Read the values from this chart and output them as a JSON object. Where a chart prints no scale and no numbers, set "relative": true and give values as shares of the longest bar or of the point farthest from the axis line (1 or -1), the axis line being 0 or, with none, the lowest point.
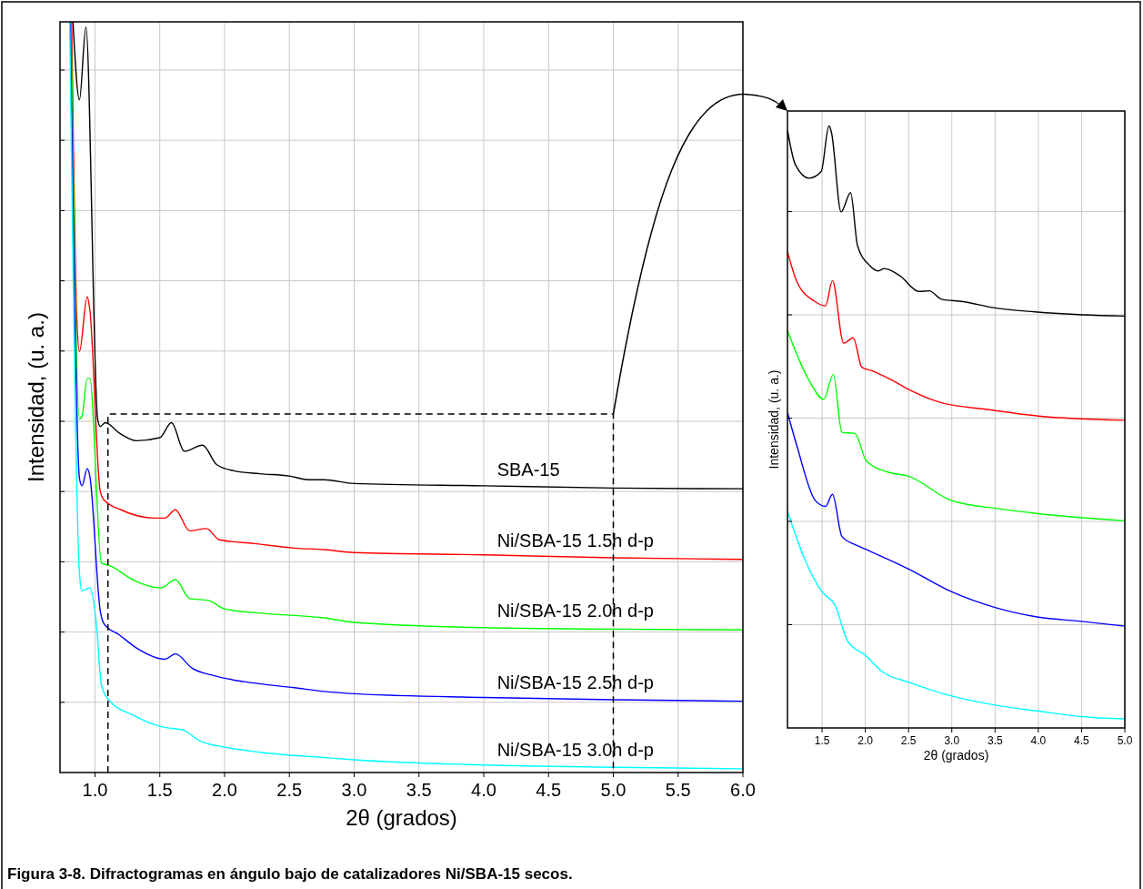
{
  "chart_data": [
    {
      "type": "line",
      "relative": true,
      "xlabel": "2θ (grados)",
      "ylabel": "Intensidad, (u. a.)",
      "xlim": [
        0.73,
        6.0
      ],
      "xticks": [
        {
          "value": 1,
          "label": "1.0"
        },
        {
          "value": 1.5,
          "label": "1.5"
        },
        {
          "value": 2,
          "label": "2.0"
        },
        {
          "value": 2.5,
          "label": "2.5"
        },
        {
          "value": 3,
          "label": "3.0"
        },
        {
          "value": 3.5,
          "label": "3.5"
        },
        {
          "value": 4,
          "label": "4.0"
        },
        {
          "value": 4.5,
          "label": "4.5"
        },
        {
          "value": 5,
          "label": "5.0"
        },
        {
          "value": 5.5,
          "label": "5.5"
        },
        {
          "value": 6,
          "label": "6.0"
        }
      ],
      "grid": true,
      "tick_labels": "x",
      "annotations": [
        "Figura 3-8. Difractogramas en ángulo bajo de catalizadores Ni/SBA-15 secos."
      ],
      "series": [
        {
          "name": "SBA-15",
          "color": "#000000",
          "x": [
            0.83,
            0.88,
            0.93,
            1.02,
            1.04,
            1.08,
            1.19,
            1.32,
            1.5,
            1.59,
            1.69,
            1.83,
            1.94,
            2.07,
            2.27,
            2.5,
            2.65,
            2.77,
            3.0,
            4.0,
            5.0,
            6.0
          ],
          "values": [
            1.0,
            0.896,
            0.993,
            0.471,
            0.461,
            0.466,
            0.452,
            0.442,
            0.446,
            0.466,
            0.428,
            0.436,
            0.41,
            0.402,
            0.398,
            0.395,
            0.39,
            0.39,
            0.385,
            0.382,
            0.379,
            0.378
          ]
        },
        {
          "name": "Ni/SBA-15 1.5h d-p",
          "color": "#ff0000",
          "x": [
            0.82,
            0.86,
            0.88,
            0.94,
            0.96,
            1.04,
            1.07,
            1.2,
            1.46,
            1.54,
            1.62,
            1.73,
            1.86,
            1.96,
            2.23,
            2.54,
            2.77,
            3.0,
            4.0,
            5.0,
            6.0
          ],
          "values": [
            1.0,
            0.604,
            0.561,
            0.634,
            0.617,
            0.375,
            0.363,
            0.35,
            0.339,
            0.339,
            0.35,
            0.322,
            0.325,
            0.31,
            0.305,
            0.299,
            0.297,
            0.293,
            0.29,
            0.286,
            0.284
          ]
        },
        {
          "name": "Ni/SBA-15 2.0h d-p",
          "color": "#00ff00",
          "x": [
            0.815,
            0.88,
            0.9,
            0.94,
            0.96,
            1.05,
            1.11,
            1.3,
            1.51,
            1.62,
            1.73,
            1.88,
            2.0,
            2.3,
            2.77,
            3.0,
            4.0,
            5.0,
            6.0
          ],
          "values": [
            1.0,
            0.471,
            0.475,
            0.525,
            0.525,
            0.279,
            0.276,
            0.256,
            0.246,
            0.257,
            0.232,
            0.229,
            0.218,
            0.212,
            0.206,
            0.2,
            0.193,
            0.191,
            0.19
          ]
        },
        {
          "name": "Ni/SBA-15 2.5h d-p",
          "color": "#0000ff",
          "x": [
            0.81,
            0.88,
            0.9,
            0.94,
            0.96,
            1.04,
            1.07,
            1.19,
            1.32,
            1.54,
            1.62,
            1.75,
            1.92,
            2.15,
            2.54,
            2.77,
            3.0,
            4.0,
            5.0,
            6.0
          ],
          "values": [
            1.0,
            0.392,
            0.382,
            0.405,
            0.395,
            0.216,
            0.198,
            0.183,
            0.166,
            0.151,
            0.158,
            0.139,
            0.129,
            0.121,
            0.113,
            0.108,
            0.105,
            0.1,
            0.097,
            0.095
          ]
        },
        {
          "name": "Ni/SBA-15 3.0h d-p",
          "color": "#00ffff",
          "x": [
            0.805,
            0.88,
            0.9,
            0.96,
            1.01,
            1.05,
            1.11,
            1.3,
            1.51,
            1.69,
            1.8,
            2.03,
            2.27,
            2.77,
            3.0,
            4.0,
            5.0,
            6.0
          ],
          "values": [
            1.0,
            0.266,
            0.242,
            0.246,
            0.199,
            0.116,
            0.096,
            0.076,
            0.061,
            0.056,
            0.043,
            0.033,
            0.027,
            0.02,
            0.017,
            0.01,
            0.007,
            0.005
          ]
        }
      ]
    },
    {
      "type": "line",
      "relative": true,
      "xlabel": "2θ (grados)",
      "ylabel": "Intensidad, (u. a.)",
      "xlim": [
        1.1,
        5.0
      ],
      "xticks": [
        {
          "value": 1.5,
          "label": "1.5"
        },
        {
          "value": 2,
          "label": "2.0"
        },
        {
          "value": 2.5,
          "label": "2.5"
        },
        {
          "value": 3,
          "label": "3.0"
        },
        {
          "value": 3.5,
          "label": "3.5"
        },
        {
          "value": 4,
          "label": "4.0"
        },
        {
          "value": 4.5,
          "label": "4.5"
        },
        {
          "value": 5,
          "label": "5.0"
        }
      ],
      "grid": true,
      "tick_labels": "x",
      "series": [
        {
          "color": "#000000",
          "x": [
            1.1,
            1.19,
            1.35,
            1.49,
            1.58,
            1.61,
            1.72,
            1.83,
            1.91,
            2.05,
            2.15,
            2.22,
            2.4,
            2.62,
            2.74,
            2.88,
            3.13,
            3.48,
            3.96,
            4.52,
            5.0
          ],
          "values": [
            0.993,
            0.936,
            0.913,
            0.924,
            1.0,
            0.988,
            0.857,
            0.889,
            0.801,
            0.768,
            0.759,
            0.763,
            0.751,
            0.725,
            0.726,
            0.712,
            0.708,
            0.698,
            0.691,
            0.686,
            0.684
          ]
        },
        {
          "color": "#ff0000",
          "x": [
            1.1,
            1.21,
            1.42,
            1.54,
            1.62,
            1.75,
            1.86,
            1.96,
            2.08,
            2.29,
            2.53,
            2.88,
            3.41,
            4.0,
            5.0
          ],
          "values": [
            0.791,
            0.741,
            0.708,
            0.701,
            0.743,
            0.639,
            0.648,
            0.599,
            0.593,
            0.579,
            0.56,
            0.54,
            0.529,
            0.518,
            0.511
          ]
        },
        {
          "color": "#00ff00",
          "x": [
            1.1,
            1.35,
            1.52,
            1.63,
            1.73,
            1.88,
            2.01,
            2.26,
            2.5,
            2.99,
            3.55,
            4.0,
            5.0
          ],
          "values": [
            0.66,
            0.577,
            0.546,
            0.587,
            0.491,
            0.489,
            0.444,
            0.425,
            0.418,
            0.378,
            0.364,
            0.356,
            0.344
          ]
        },
        {
          "color": "#0000ff",
          "x": [
            1.1,
            1.21,
            1.42,
            1.54,
            1.62,
            1.73,
            1.89,
            2.0,
            2.5,
            3.0,
            3.5,
            4.0,
            4.5,
            5.0
          ],
          "values": [
            0.524,
            0.468,
            0.378,
            0.368,
            0.388,
            0.318,
            0.304,
            0.297,
            0.264,
            0.226,
            0.2,
            0.184,
            0.177,
            0.169
          ]
        },
        {
          "color": "#00ffff",
          "x": [
            1.1,
            1.3,
            1.5,
            1.65,
            1.8,
            2.0,
            2.2,
            2.5,
            3.0,
            3.5,
            4.0,
            4.5,
            5.0
          ],
          "values": [
            0.36,
            0.28,
            0.226,
            0.204,
            0.143,
            0.121,
            0.093,
            0.076,
            0.053,
            0.038,
            0.028,
            0.019,
            0.015
          ]
        }
      ]
    }
  ]
}
